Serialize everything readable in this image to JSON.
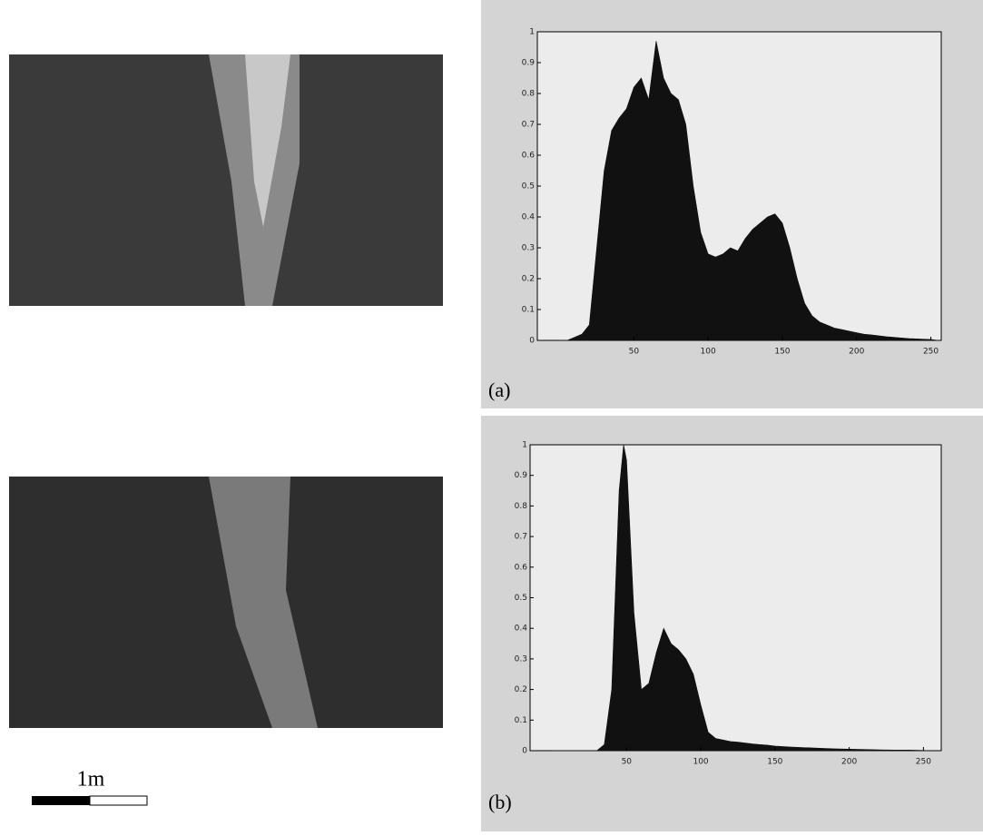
{
  "chart_data": [
    {
      "type": "area",
      "color": "#111111",
      "x": [
        0,
        5,
        10,
        15,
        20,
        25,
        30,
        35,
        40,
        45,
        50,
        55,
        60,
        65,
        70,
        75,
        80,
        85,
        90,
        95,
        100,
        105,
        110,
        115,
        120,
        125,
        130,
        135,
        140,
        145,
        150,
        155,
        160,
        165,
        170,
        175,
        180,
        185,
        190,
        195,
        200,
        205,
        210,
        215,
        220,
        225,
        230,
        235,
        240,
        245,
        250,
        255
      ],
      "values": [
        0,
        0,
        0.01,
        0.02,
        0.05,
        0.3,
        0.55,
        0.68,
        0.72,
        0.75,
        0.82,
        0.85,
        0.78,
        0.97,
        0.85,
        0.8,
        0.78,
        0.7,
        0.5,
        0.35,
        0.28,
        0.27,
        0.28,
        0.3,
        0.29,
        0.33,
        0.36,
        0.38,
        0.4,
        0.41,
        0.38,
        0.3,
        0.2,
        0.12,
        0.08,
        0.06,
        0.05,
        0.04,
        0.035,
        0.03,
        0.025,
        0.02,
        0.018,
        0.015,
        0.012,
        0.01,
        0.008,
        0.006,
        0.005,
        0.004,
        0.003,
        0
      ],
      "xlim": [
        -15,
        257
      ],
      "ylim": [
        0,
        1
      ],
      "xticks": [
        50,
        100,
        150,
        200,
        250
      ],
      "yticks": [
        0,
        0.1,
        0.2,
        0.3,
        0.4,
        0.5,
        0.6,
        0.7,
        0.8,
        0.9,
        1
      ]
    },
    {
      "type": "area",
      "color": "#111111",
      "x": [
        0,
        5,
        10,
        15,
        20,
        25,
        30,
        35,
        40,
        45,
        48,
        50,
        55,
        60,
        65,
        70,
        75,
        80,
        85,
        90,
        95,
        100,
        105,
        110,
        115,
        120,
        125,
        130,
        135,
        140,
        145,
        150,
        160,
        170,
        180,
        190,
        200,
        210,
        220,
        230,
        240,
        250,
        255
      ],
      "values": [
        0,
        0,
        0,
        0,
        0,
        0,
        0,
        0.02,
        0.2,
        0.85,
        1,
        0.95,
        0.45,
        0.2,
        0.22,
        0.32,
        0.4,
        0.35,
        0.33,
        0.3,
        0.25,
        0.15,
        0.06,
        0.04,
        0.035,
        0.03,
        0.028,
        0.025,
        0.022,
        0.02,
        0.018,
        0.015,
        0.012,
        0.01,
        0.008,
        0.006,
        0.005,
        0.004,
        0.003,
        0.002,
        0.002,
        0.001,
        0
      ],
      "xlim": [
        -15,
        262
      ],
      "ylim": [
        0,
        1
      ],
      "xticks": [
        50,
        100,
        150,
        200,
        250
      ],
      "yticks": [
        0,
        0.1,
        0.2,
        0.3,
        0.4,
        0.5,
        0.6,
        0.7,
        0.8,
        0.9,
        1
      ]
    }
  ],
  "captions": [
    "(a)",
    "(b)"
  ],
  "scale_label": "1m"
}
